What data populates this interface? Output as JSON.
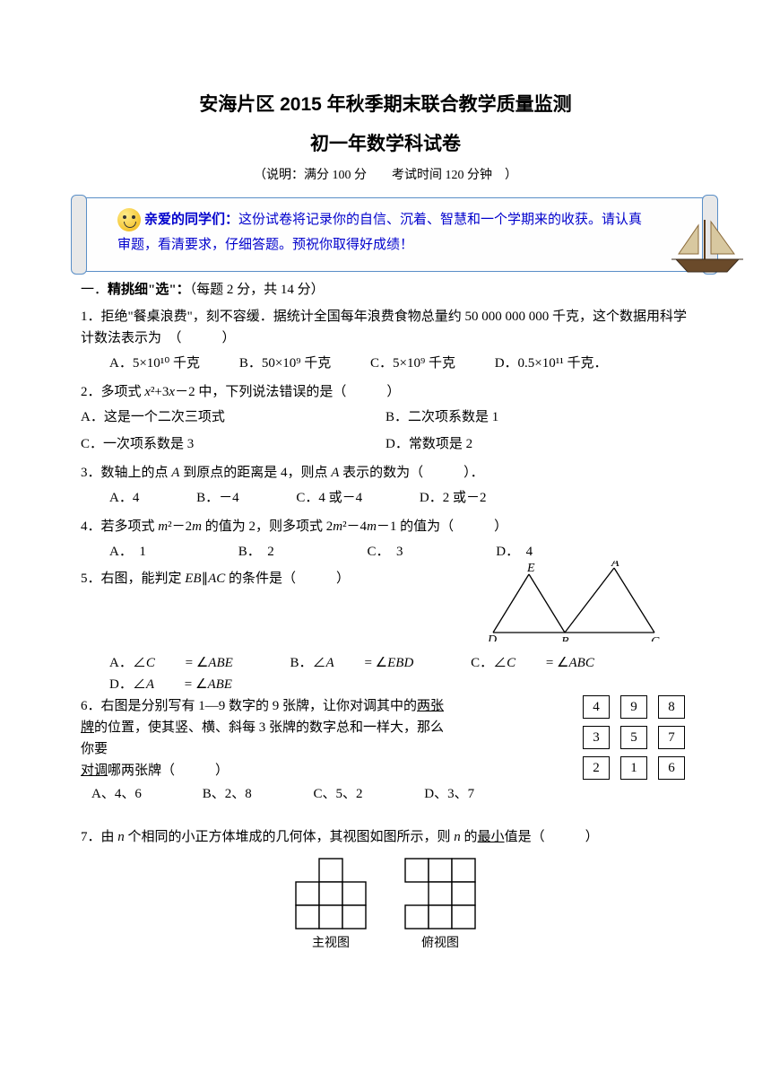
{
  "header": {
    "title1": "安海片区 2015 年秋季期末联合教学质量监测",
    "title2": "初一年数学科试卷",
    "subtitle": "（说明：满分 100 分　　考试时间 120 分钟　）"
  },
  "banner": {
    "lead": "亲爱的同学们：",
    "body": "这份试卷将记录你的自信、沉着、智慧和一个学期来的收获。请认真审题，看清要求，仔细答题。预祝你取得好成绩！",
    "text_color": "#0000cc",
    "border_color": "#5a8fc7"
  },
  "section1": {
    "heading_prefix": "一．",
    "heading_bold": "精挑细\"选\"：",
    "heading_tail": "（每题 2 分，共 14 分）"
  },
  "q1": {
    "stem": "1．拒绝\"餐桌浪费\"，刻不容缓．据统计全国每年浪费食物总量约 50 000 000 000 千克，这个数据用科学计数法表示为　（　　　）",
    "A": "A．5×10¹⁰ 千克",
    "B": "B．50×10⁹ 千克",
    "C": "C．5×10⁹ 千克",
    "D": "D．0.5×10¹¹ 千克．"
  },
  "q2": {
    "stem": "2．多项式 x²+3x－2 中，下列说法错误的是（　　　）",
    "A": "A．这是一个二次三项式",
    "B": "B．二次项系数是 1",
    "C": "C．一次项系数是 3",
    "D": "D．常数项是 2"
  },
  "q3": {
    "stem": "3．数轴上的点 A 到原点的距离是 4，则点 A 表示的数为（　　　）．",
    "A": "A．4",
    "B": "B．－4",
    "C": "C．4 或－4",
    "D": "D．2 或－2"
  },
  "q4": {
    "stem": "4．若多项式 m²－2m 的值为 2，则多项式 2m²－4m－1 的值为（　　　）",
    "A": "A．　1",
    "B": "B．　2",
    "C": "C．　3",
    "D": "D．　4"
  },
  "q5": {
    "stem": "5．右图，能判定 EB∥AC 的条件是（　　　）",
    "A": "A．∠C = ∠ABE",
    "B": "B．∠A = ∠EBD",
    "C": "C．∠C = ∠ABC",
    "D": "D．∠A = ∠ABE",
    "labels": {
      "E": "E",
      "A": "A",
      "D": "D",
      "B": "B",
      "C": "C"
    },
    "line_color": "#000000"
  },
  "q6": {
    "stem1": "6．右图是分别写有 1—9 数字的 9 张牌，让你对调其中的",
    "stem1u": "两张牌",
    "stem2": "的位置，使其竖、横、斜每 3 张牌的数字总和一样大，那么你要",
    "stem3u": "对调",
    "stem3": "哪两张牌（　　　）",
    "A": "A、4、6",
    "B": "B、2、8",
    "C": "C、5、2",
    "D": "D、3、7",
    "grid": [
      [
        "4",
        "9",
        "8"
      ],
      [
        "3",
        "5",
        "7"
      ],
      [
        "2",
        "1",
        "6"
      ]
    ],
    "cell_border": "#000000"
  },
  "q7": {
    "stem": "7．由 n 个相同的小正方体堆成的几何体，其视图如图所示，则 n 的",
    "stem_u": "最小",
    "stem_tail": "值是（　　　）",
    "front_label": "主视图",
    "top_label": "俯视图",
    "front_grid": {
      "rows": 3,
      "cols": 3,
      "filled": [
        [
          0,
          1
        ],
        [
          1,
          0
        ],
        [
          1,
          1
        ],
        [
          1,
          2
        ],
        [
          2,
          0
        ],
        [
          2,
          1
        ],
        [
          2,
          2
        ]
      ]
    },
    "top_grid": {
      "rows": 3,
      "cols": 3,
      "filled": [
        [
          0,
          0
        ],
        [
          0,
          1
        ],
        [
          0,
          2
        ],
        [
          1,
          1
        ],
        [
          1,
          2
        ],
        [
          2,
          0
        ],
        [
          2,
          1
        ],
        [
          2,
          2
        ]
      ]
    },
    "cell_size": 26,
    "border_color": "#000000"
  }
}
